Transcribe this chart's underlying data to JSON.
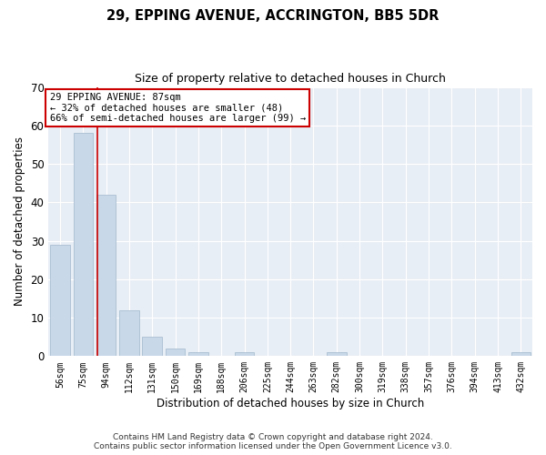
{
  "title1": "29, EPPING AVENUE, ACCRINGTON, BB5 5DR",
  "title2": "Size of property relative to detached houses in Church",
  "xlabel": "Distribution of detached houses by size in Church",
  "ylabel": "Number of detached properties",
  "categories": [
    "56sqm",
    "75sqm",
    "94sqm",
    "112sqm",
    "131sqm",
    "150sqm",
    "169sqm",
    "188sqm",
    "206sqm",
    "225sqm",
    "244sqm",
    "263sqm",
    "282sqm",
    "300sqm",
    "319sqm",
    "338sqm",
    "357sqm",
    "376sqm",
    "394sqm",
    "413sqm",
    "432sqm"
  ],
  "values": [
    29,
    58,
    42,
    12,
    5,
    2,
    1,
    0,
    1,
    0,
    0,
    0,
    1,
    0,
    0,
    0,
    0,
    0,
    0,
    0,
    1
  ],
  "bar_color": "#c8d8e8",
  "bar_edge_color": "#a0b8cc",
  "property_label": "29 EPPING AVENUE: 87sqm",
  "annotation_line1": "← 32% of detached houses are smaller (48)",
  "annotation_line2": "66% of semi-detached houses are larger (99) →",
  "vline_color": "#cc0000",
  "vline_x_index": 1.63,
  "ylim": [
    0,
    70
  ],
  "yticks": [
    0,
    10,
    20,
    30,
    40,
    50,
    60,
    70
  ],
  "background_color": "#e8eef5",
  "footer1": "Contains HM Land Registry data © Crown copyright and database right 2024.",
  "footer2": "Contains public sector information licensed under the Open Government Licence v3.0."
}
